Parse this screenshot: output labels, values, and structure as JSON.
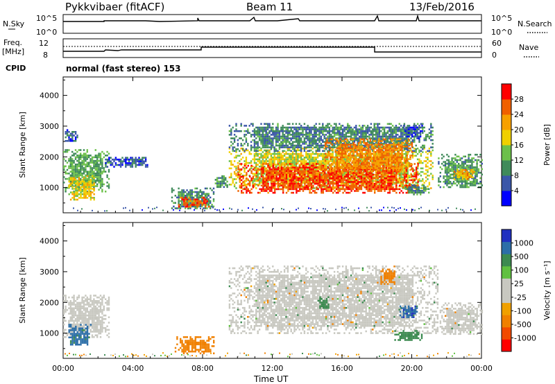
{
  "header": {
    "station": "Pykkvibaer (fitACF)",
    "beam": "Beam 11",
    "date": "13/Feb/2016"
  },
  "noise_panel": {
    "left_label": "N.Sky",
    "right_label": "N.Search",
    "left_ticks": [
      "10^5",
      "10^0"
    ],
    "right_ticks": [
      "10^5",
      "10^0"
    ]
  },
  "freq_panel": {
    "left_label_1": "Freq.",
    "left_label_2": "[MHz]",
    "right_label": "Nave",
    "left_ticks": [
      "12",
      "8"
    ],
    "right_ticks": [
      "60",
      "0"
    ]
  },
  "cpid": {
    "label": "CPID",
    "text": "normal (fast stereo) 153"
  },
  "colors": {
    "power_scale": [
      "#0000ff",
      "#3a56a8",
      "#3f8a5a",
      "#6cc04a",
      "#f0d000",
      "#f7a000",
      "#f06000",
      "#ff0000"
    ],
    "velocity_scale": [
      "#ff0000",
      "#f24a00",
      "#f08000",
      "#f0a000",
      "#c8c8c0",
      "#c8c8c0",
      "#60c040",
      "#3c8a50",
      "#2c6ea8",
      "#2030c0"
    ],
    "ground_scatter": "#c8c8c0"
  },
  "chart_data": [
    {
      "type": "heatmap",
      "panel": "power",
      "xlabel": "",
      "ylabel": "Slant Range [km]",
      "x_ticks": [
        "00:00",
        "04:00",
        "08:00",
        "12:00",
        "16:00",
        "20:00",
        "00:00"
      ],
      "y_ticks": [
        "1000",
        "2000",
        "3000",
        "4000"
      ],
      "ylim": [
        180,
        4600
      ],
      "xlim_hours": [
        0,
        24
      ],
      "colorbar": {
        "label": "Power [dB]",
        "ticks": [
          "4",
          "8",
          "12",
          "16",
          "20",
          "24",
          "28"
        ],
        "range": [
          0,
          32
        ]
      },
      "regions": [
        {
          "t0": 0.0,
          "t1": 2.6,
          "r0": 900,
          "r1": 2250,
          "level": 12
        },
        {
          "t0": 0.1,
          "t1": 0.8,
          "r0": 2500,
          "r1": 2900,
          "level": 6
        },
        {
          "t0": 0.3,
          "t1": 1.8,
          "r0": 600,
          "r1": 1400,
          "level": 18
        },
        {
          "t0": 2.4,
          "t1": 4.8,
          "r0": 1700,
          "r1": 2000,
          "level": 6
        },
        {
          "t0": 6.2,
          "t1": 8.6,
          "r0": 300,
          "r1": 1000,
          "level": 10
        },
        {
          "t0": 6.6,
          "t1": 8.4,
          "r0": 400,
          "r1": 700,
          "level": 26
        },
        {
          "t0": 8.7,
          "t1": 9.4,
          "r0": 1000,
          "r1": 1400,
          "level": 10
        },
        {
          "t0": 9.5,
          "t1": 21.2,
          "r0": 1000,
          "r1": 2300,
          "level": 17
        },
        {
          "t0": 10.0,
          "t1": 20.4,
          "r0": 850,
          "r1": 1800,
          "level": 27
        },
        {
          "t0": 9.5,
          "t1": 21.2,
          "r0": 2200,
          "r1": 3100,
          "level": 9
        },
        {
          "t0": 15.0,
          "t1": 20.0,
          "r0": 1500,
          "r1": 2600,
          "level": 24
        },
        {
          "t0": 19.5,
          "t1": 20.6,
          "r0": 2600,
          "r1": 3100,
          "level": 6
        },
        {
          "t0": 19.6,
          "t1": 21.0,
          "r0": 800,
          "r1": 1100,
          "level": 10
        },
        {
          "t0": 21.5,
          "t1": 24.0,
          "r0": 1000,
          "r1": 2100,
          "level": 11
        },
        {
          "t0": 22.4,
          "t1": 23.6,
          "r0": 1300,
          "r1": 1600,
          "level": 21
        }
      ]
    },
    {
      "type": "heatmap",
      "panel": "velocity",
      "xlabel": "Time UT",
      "ylabel": "Slant Range [km]",
      "x_ticks": [
        "00:00",
        "04:00",
        "08:00",
        "12:00",
        "16:00",
        "20:00",
        "00:00"
      ],
      "y_ticks": [
        "1000",
        "2000",
        "3000",
        "4000"
      ],
      "ylim": [
        180,
        4600
      ],
      "xlim_hours": [
        0,
        24
      ],
      "colorbar": {
        "label": "Velocity [m s⁻¹]",
        "ticks": [
          "1000",
          "500",
          "100",
          "25",
          "-25",
          "-100",
          "-500",
          "-1000"
        ]
      },
      "regions": [
        {
          "t0": 0.0,
          "t1": 2.6,
          "r0": 900,
          "r1": 2250,
          "vel": 15
        },
        {
          "t0": 0.3,
          "t1": 1.6,
          "r0": 600,
          "r1": 1300,
          "vel": 700
        },
        {
          "t0": 6.4,
          "t1": 8.6,
          "r0": 350,
          "r1": 900,
          "vel": -200
        },
        {
          "t0": 9.5,
          "t1": 21.5,
          "r0": 1000,
          "r1": 3200,
          "vel": 0
        },
        {
          "t0": 14.6,
          "t1": 15.2,
          "r0": 1800,
          "r1": 2200,
          "vel": 200
        },
        {
          "t0": 18.2,
          "t1": 19.0,
          "r0": 2600,
          "r1": 3100,
          "vel": -300
        },
        {
          "t0": 19.3,
          "t1": 20.3,
          "r0": 1500,
          "r1": 1900,
          "vel": 800
        },
        {
          "t0": 19.0,
          "t1": 20.6,
          "r0": 800,
          "r1": 1100,
          "vel": 300
        },
        {
          "t0": 21.6,
          "t1": 24.0,
          "r0": 1000,
          "r1": 2000,
          "vel": 0
        }
      ]
    }
  ],
  "x_axis_title": "Time UT"
}
